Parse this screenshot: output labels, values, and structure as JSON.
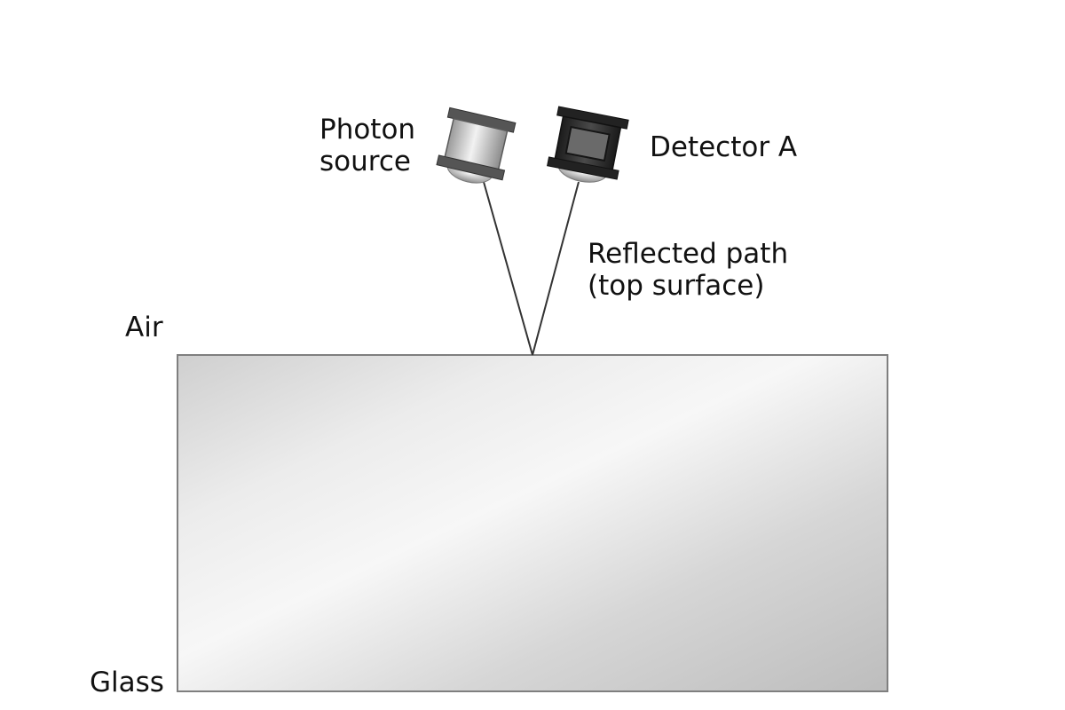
{
  "labels": {
    "photon_source_line1": "Photon",
    "photon_source_line2": "source",
    "detector": "Detector A",
    "reflected_path_line1": "Reflected path",
    "reflected_path_line2": "(top surface)",
    "air": "Air",
    "glass": "Glass"
  },
  "colors": {
    "glass_edge": "#7f7f7f",
    "beam": "#333333",
    "source_body": "#d8d8d8",
    "detector_body": "#2a2a2a"
  }
}
